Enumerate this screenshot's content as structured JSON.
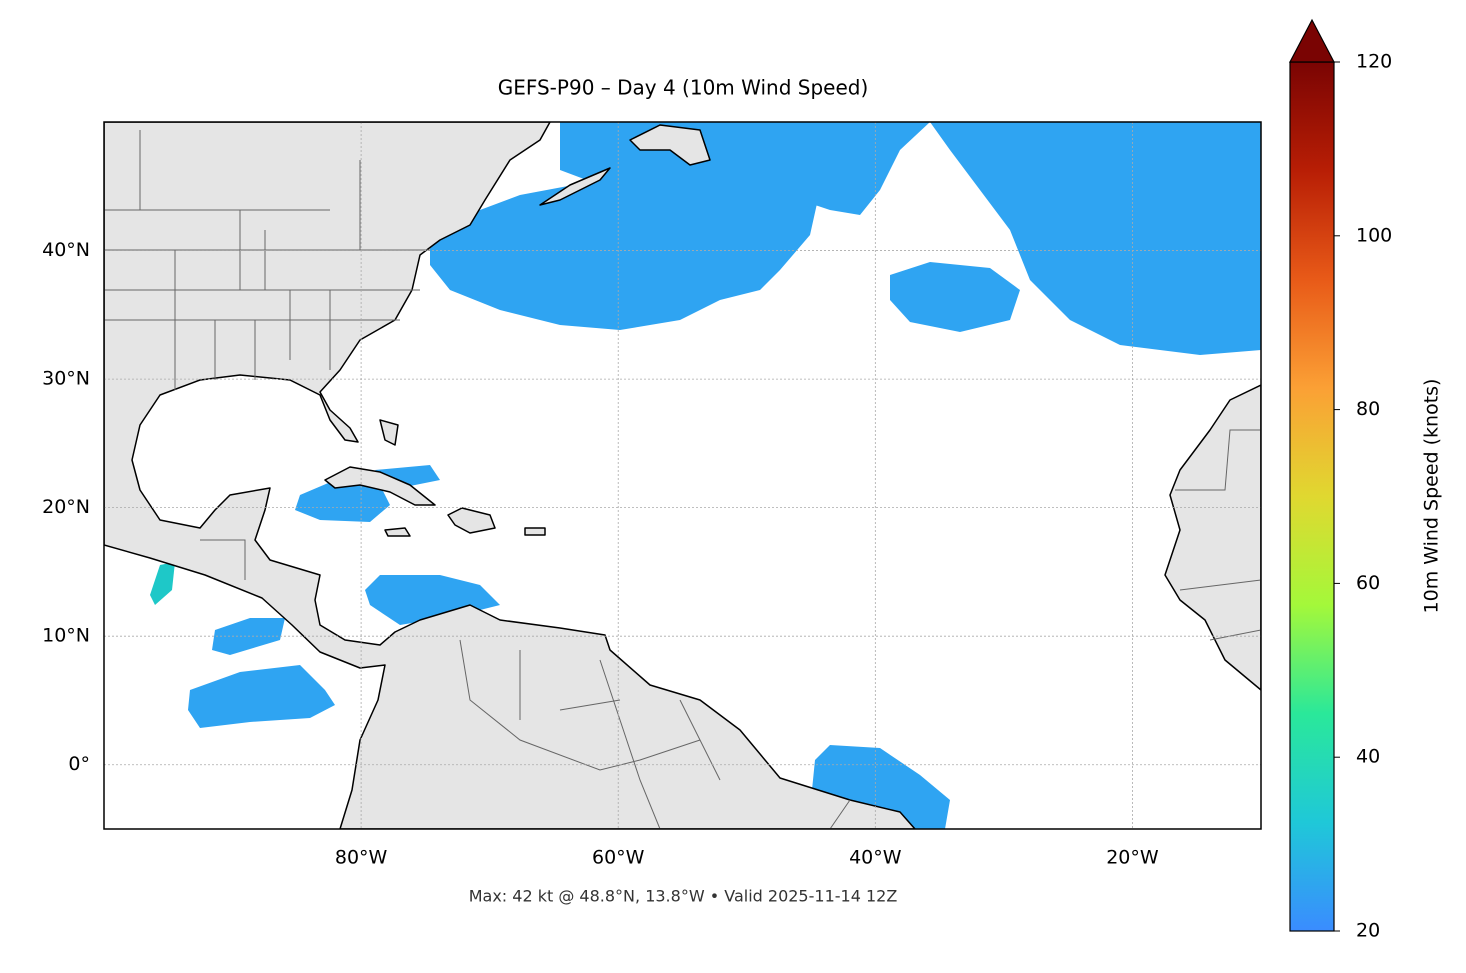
{
  "chart_data": {
    "type": "map",
    "title": "GEFS-P90 – Day 4 (10m Wind Speed)",
    "caption": "Max: 42 kt @ 48.8°N, 13.8°W • Valid 2025-11-14 12Z",
    "xlim": [
      -100,
      -10
    ],
    "ylim": [
      -5,
      50
    ],
    "xticks": [
      {
        "value": -80,
        "label": "80°W"
      },
      {
        "value": -60,
        "label": "60°W"
      },
      {
        "value": -40,
        "label": "40°W"
      },
      {
        "value": -20,
        "label": "20°W"
      }
    ],
    "yticks": [
      {
        "value": 0,
        "label": "0°"
      },
      {
        "value": 10,
        "label": "10°N"
      },
      {
        "value": 20,
        "label": "20°N"
      },
      {
        "value": 30,
        "label": "30°N"
      },
      {
        "value": 40,
        "label": "40°N"
      }
    ],
    "grid": true,
    "colorbar": {
      "label": "10m Wind Speed (knots)",
      "lim": [
        20,
        120
      ],
      "ticks": [
        20,
        40,
        60,
        80,
        100,
        120
      ],
      "colormap": [
        "#3a8cff",
        "#1fc8d8",
        "#2ae89a",
        "#a4f83a",
        "#e0d830",
        "#fba035",
        "#e85a18",
        "#b81e05",
        "#7a0403"
      ]
    }
  }
}
